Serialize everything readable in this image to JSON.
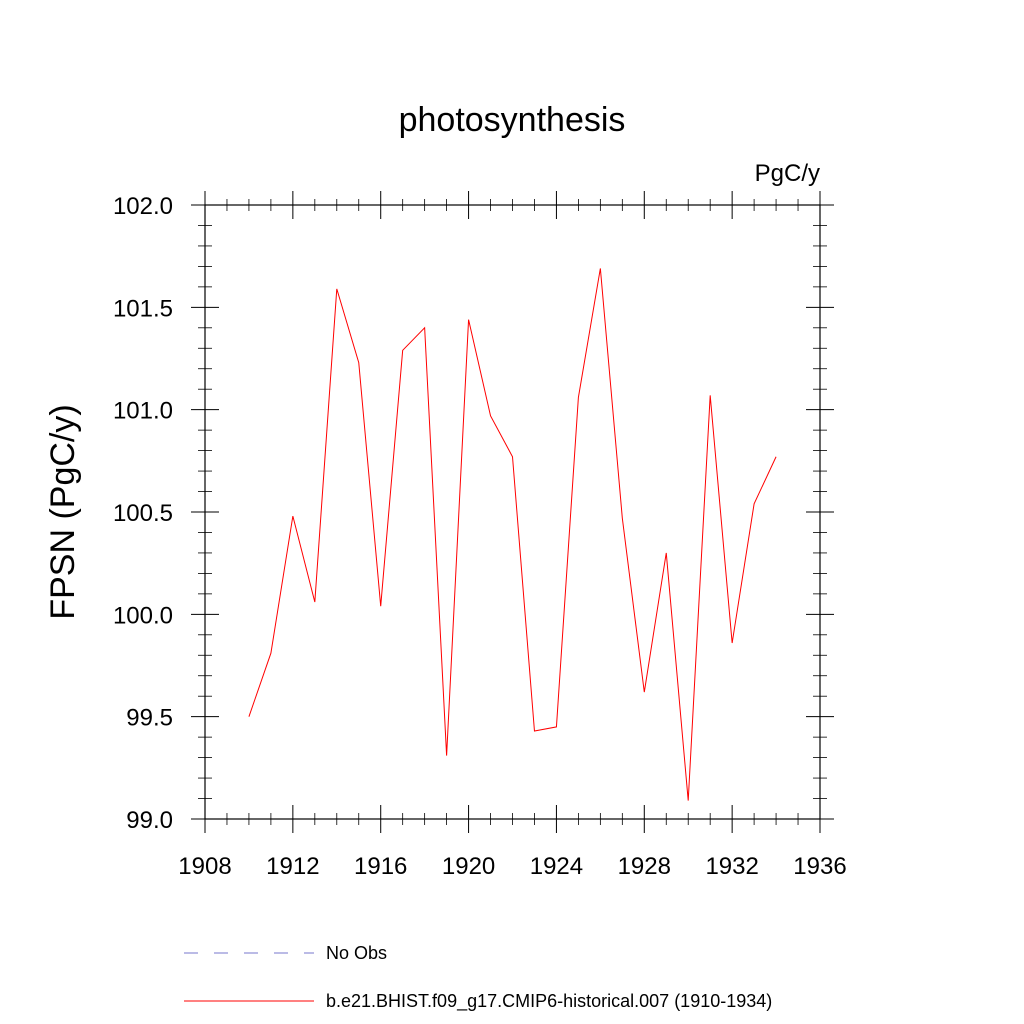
{
  "chart_data": {
    "type": "line",
    "title": "photosynthesis",
    "units_label": "PgC/y",
    "ylabel": "FPSN  (PgC/y)",
    "xlabel": "",
    "xlim": [
      1908,
      1936
    ],
    "ylim": [
      99.0,
      102.0
    ],
    "x_ticks": [
      1908,
      1912,
      1916,
      1920,
      1924,
      1928,
      1932,
      1936
    ],
    "y_ticks": [
      99.0,
      99.5,
      100.0,
      100.5,
      101.0,
      101.5,
      102.0
    ],
    "y_tick_labels": [
      "99.0",
      "99.5",
      "100.0",
      "100.5",
      "101.0",
      "101.5",
      "102.0"
    ],
    "grid": false,
    "series": [
      {
        "name": "b.e21.BHIST.f09_g17.CMIP6-historical.007 (1910-1934)",
        "color": "#ff0000",
        "x": [
          1910,
          1911,
          1912,
          1913,
          1914,
          1915,
          1916,
          1917,
          1918,
          1919,
          1920,
          1921,
          1922,
          1923,
          1924,
          1925,
          1926,
          1927,
          1928,
          1929,
          1930,
          1931,
          1932,
          1933,
          1934
        ],
        "values": [
          99.5,
          99.81,
          100.48,
          100.06,
          101.59,
          101.23,
          100.04,
          101.29,
          101.4,
          99.31,
          101.44,
          100.97,
          100.77,
          99.43,
          99.45,
          101.06,
          101.69,
          100.47,
          99.62,
          100.3,
          99.09,
          101.07,
          99.86,
          100.54,
          100.77
        ]
      }
    ],
    "legend": [
      {
        "label": "No Obs",
        "style": "dashed",
        "color": "#7777cc"
      },
      {
        "label": "b.e21.BHIST.f09_g17.CMIP6-historical.007 (1910-1934)",
        "style": "solid",
        "color": "#ff0000"
      }
    ],
    "legend_position": "bottom"
  }
}
